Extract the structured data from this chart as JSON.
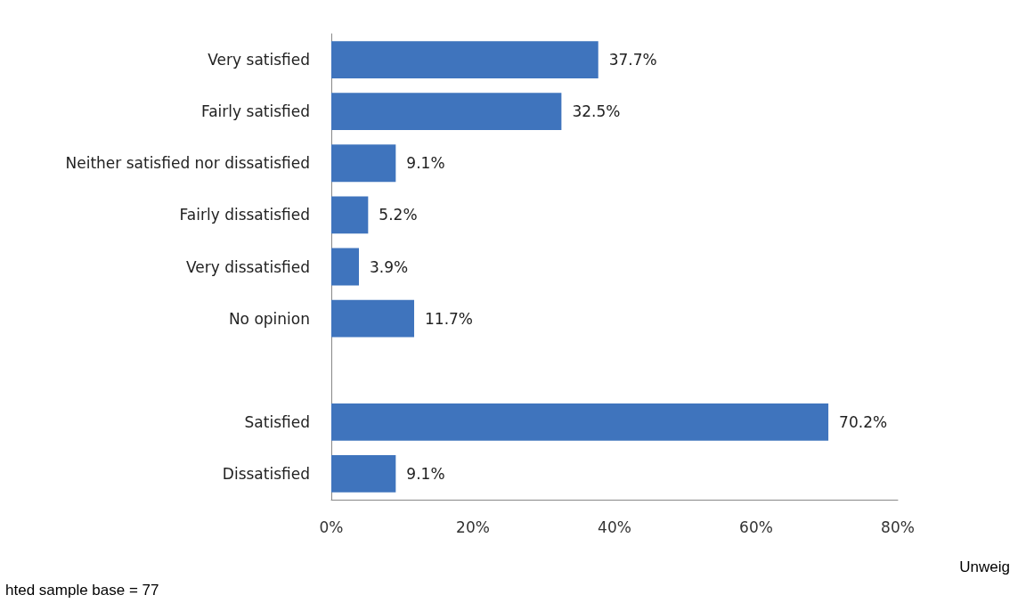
{
  "chart_data": {
    "type": "bar",
    "orientation": "horizontal",
    "categories": [
      "Very satisfied",
      "Fairly satisfied",
      "Neither satisfied nor dissatisfied",
      "Fairly dissatisfied",
      "Very dissatisfied",
      "No opinion",
      null,
      "Satisfied",
      "Dissatisfied"
    ],
    "values": [
      37.7,
      32.5,
      9.1,
      5.2,
      3.9,
      11.7,
      null,
      70.2,
      9.1
    ],
    "value_labels": [
      "37.7%",
      "32.5%",
      "9.1%",
      "5.2%",
      "3.9%",
      "11.7%",
      null,
      "70.2%",
      "9.1%"
    ],
    "color": "#3f74bd",
    "xlim": [
      0,
      80
    ],
    "xticks": [
      {
        "value": 0,
        "label": "0%"
      },
      {
        "value": 20,
        "label": "20%"
      },
      {
        "value": 40,
        "label": "40%"
      },
      {
        "value": 60,
        "label": "60%"
      },
      {
        "value": 80,
        "label": "80%"
      }
    ],
    "grid": false,
    "annotations": [
      "Unweig",
      "hted sample base = 77"
    ]
  }
}
